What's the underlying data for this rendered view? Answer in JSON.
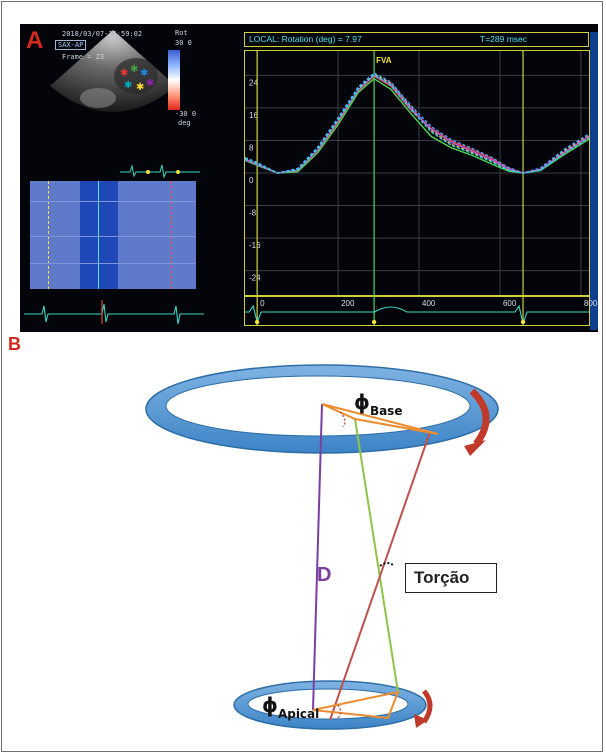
{
  "panel_a": {
    "letter": "A",
    "echo": {
      "timestamp": "2018/03/07-15:59:02",
      "view": "SAX-AP",
      "frame": "Frame = 23",
      "colorbar_title": "Rot",
      "colorbar_top": "30 0",
      "colorbar_bottom": "-30 0",
      "colorbar_unit": "deg"
    },
    "chart_header": {
      "label": "LOCAL: Rotation (deg) = 7.97",
      "time": "T=289 msec"
    },
    "chart_data": {
      "type": "line",
      "title": "",
      "xlabel": "",
      "ylabel": "",
      "ylim": [
        -30,
        30
      ],
      "xlim": [
        -30,
        820
      ],
      "x_ticks": [
        "0",
        "200",
        "400",
        "600",
        "800"
      ],
      "y_ticks": [
        "24",
        "16",
        "8",
        "0",
        "-8",
        "-16",
        "-24"
      ],
      "annotation": "FVA",
      "annotation_x": 289,
      "vertical_markers": [
        0,
        289,
        657
      ],
      "series_colors": [
        "#e03c3c",
        "#f0c338",
        "#4fd35a",
        "#4aa6ff",
        "#b05ce6",
        "#27d6d6"
      ],
      "x": [
        -30,
        0,
        50,
        100,
        150,
        200,
        250,
        289,
        330,
        380,
        430,
        480,
        530,
        580,
        620,
        657,
        700,
        760,
        820
      ],
      "series": [
        {
          "values": [
            3.4,
            2.2,
            0,
            0.6,
            5.5,
            12.4,
            20.2,
            23.8,
            21.4,
            15.4,
            11.0,
            7.8,
            5.8,
            3.6,
            1.2,
            0,
            0.8,
            5.0,
            8.8
          ]
        },
        {
          "values": [
            3.6,
            2.4,
            0,
            0.9,
            6.1,
            13.2,
            20.9,
            24.3,
            22.1,
            16.2,
            10.4,
            7.0,
            5.1,
            2.9,
            0.8,
            0,
            1.0,
            5.5,
            9.2
          ]
        },
        {
          "values": [
            3.1,
            1.9,
            0,
            0.3,
            5.0,
            11.9,
            19.8,
            23.2,
            20.6,
            14.6,
            9.0,
            6.2,
            4.4,
            2.2,
            0.5,
            0,
            0.6,
            4.6,
            8.3
          ]
        },
        {
          "values": [
            3.8,
            2.6,
            0,
            1.1,
            6.4,
            13.6,
            21.2,
            24.6,
            22.4,
            16.6,
            11.4,
            8.2,
            6.1,
            3.8,
            1.4,
            0,
            1.2,
            5.9,
            9.6
          ]
        },
        {
          "values": [
            3.3,
            2.1,
            0,
            0.7,
            5.7,
            12.8,
            20.5,
            24.0,
            21.8,
            15.9,
            10.8,
            7.5,
            5.4,
            3.2,
            1.0,
            0,
            0.9,
            5.2,
            9.0
          ]
        },
        {
          "values": [
            3.5,
            2.3,
            0,
            0.8,
            5.9,
            12.9,
            20.6,
            24.1,
            21.6,
            15.6,
            10.1,
            6.8,
            4.9,
            2.7,
            0.7,
            0,
            0.7,
            4.9,
            8.6
          ]
        }
      ]
    }
  },
  "panel_b": {
    "letter": "B",
    "phi_symbol": "ϕ",
    "phi_base_sub": "Base",
    "phi_apical_sub": "Apical",
    "label_d": "D",
    "label_torsion": "Torção",
    "colors": {
      "ring": "#5b9bd5",
      "ring_edge": "#2e6ea6",
      "arrow": "#c0392b",
      "triangle": "#ed8b2f",
      "purple_line": "#7a3fa0",
      "green_line": "#8ec447",
      "red_line": "#c0504d"
    }
  }
}
